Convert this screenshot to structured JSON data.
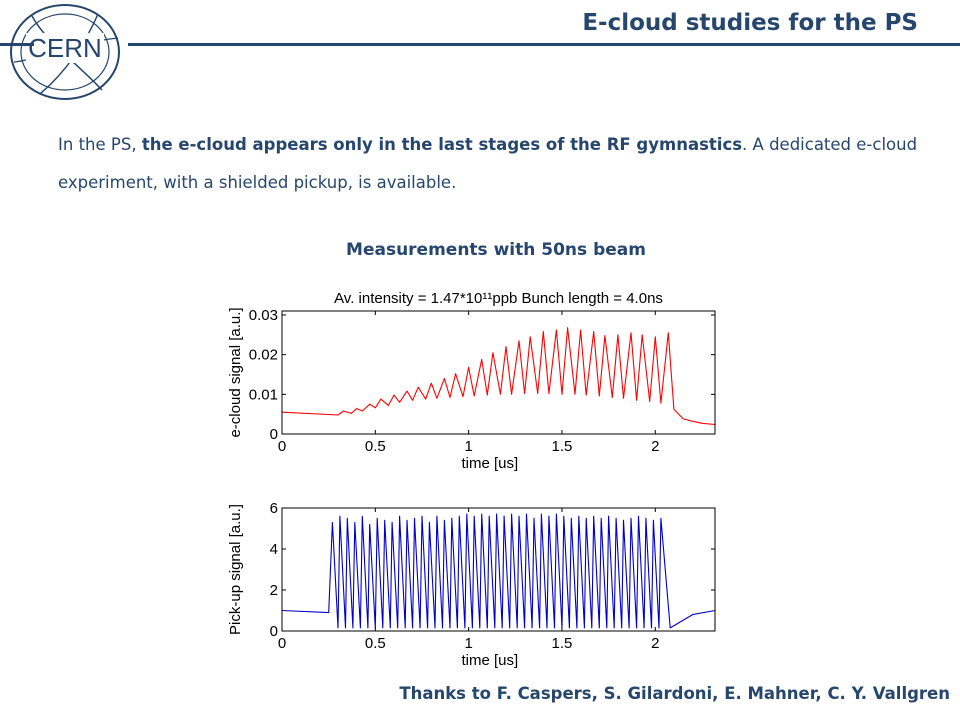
{
  "header": {
    "logo_text": "CERN",
    "title": "E-cloud studies for the PS"
  },
  "intro": {
    "part1": "In the PS, ",
    "bold1": "the e-cloud appears only  in the last stages of the RF gymnastics",
    "part2": ". A dedicated e-cloud experiment, with a shielded pickup, is available."
  },
  "subheading": "Measurements with 50ns beam",
  "footer": "Thanks to F. Caspers, S. Gilardoni, E. Mahner, C. Y. Vallgren",
  "colors": {
    "accent": "#26466d",
    "ecloud_trace": "#ff0000",
    "pickup_trace": "#0000cc"
  },
  "chart_data": [
    {
      "type": "line",
      "title": "Av. intensity = 1.47*10¹¹ppb Bunch length = 4.0ns",
      "xlabel": "time [us]",
      "ylabel": "e-cloud signal [a.u.]",
      "xlim": [
        0,
        2.32
      ],
      "ylim": [
        0,
        0.031
      ],
      "xticks": [
        0,
        0.5,
        1,
        1.5,
        2
      ],
      "xtick_labels": [
        "0",
        "0.5",
        "1",
        "1.5",
        "2"
      ],
      "yticks": [
        0,
        0.01,
        0.02,
        0.03
      ],
      "ytick_labels": [
        "0",
        "0.01",
        "0.02",
        "0.03"
      ],
      "grid": false,
      "series": [
        {
          "x": [
            0,
            0.3,
            0.33,
            0.37,
            0.4,
            0.43,
            0.47,
            0.5,
            0.53,
            0.57,
            0.6,
            0.63,
            0.67,
            0.7,
            0.73,
            0.77,
            0.8,
            0.83,
            0.87,
            0.9,
            0.93,
            0.97,
            1.0,
            1.03,
            1.07,
            1.1,
            1.13,
            1.17,
            1.2,
            1.23,
            1.27,
            1.3,
            1.33,
            1.37,
            1.4,
            1.43,
            1.47,
            1.5,
            1.53,
            1.57,
            1.6,
            1.63,
            1.67,
            1.7,
            1.73,
            1.77,
            1.8,
            1.83,
            1.87,
            1.9,
            1.93,
            1.97,
            2.0,
            2.03,
            2.07,
            2.1,
            2.15,
            2.2,
            2.25,
            2.32
          ],
          "y": [
            0.0055,
            0.0048,
            0.0058,
            0.0052,
            0.0064,
            0.0058,
            0.0075,
            0.0066,
            0.0088,
            0.0072,
            0.0098,
            0.008,
            0.0108,
            0.0085,
            0.0118,
            0.0088,
            0.0128,
            0.009,
            0.014,
            0.0092,
            0.0152,
            0.0094,
            0.0168,
            0.0096,
            0.0188,
            0.0098,
            0.0205,
            0.01,
            0.022,
            0.01,
            0.0235,
            0.0102,
            0.0245,
            0.0102,
            0.0258,
            0.0102,
            0.0262,
            0.01,
            0.0268,
            0.01,
            0.0262,
            0.0098,
            0.0258,
            0.0096,
            0.0248,
            0.0092,
            0.025,
            0.009,
            0.0255,
            0.0085,
            0.025,
            0.0082,
            0.0245,
            0.0078,
            0.0255,
            0.0062,
            0.0038,
            0.0032,
            0.0027,
            0.0024
          ]
        }
      ]
    },
    {
      "type": "line",
      "title": "",
      "xlabel": "time [us]",
      "ylabel": "Pick-up signal [a.u.]",
      "xlim": [
        0,
        2.32
      ],
      "ylim": [
        0,
        6
      ],
      "xticks": [
        0,
        0.5,
        1,
        1.5,
        2
      ],
      "xtick_labels": [
        "0",
        "0.5",
        "1",
        "1.5",
        "2"
      ],
      "yticks": [
        0,
        2,
        4,
        6
      ],
      "ytick_labels": [
        "0",
        "2",
        "4",
        "6"
      ],
      "grid": false,
      "series": [
        {
          "x": [
            0,
            0.25,
            0.27,
            0.3,
            0.31,
            0.34,
            0.35,
            0.38,
            0.39,
            0.42,
            0.43,
            0.46,
            0.47,
            0.5,
            0.51,
            0.54,
            0.55,
            0.58,
            0.59,
            0.62,
            0.63,
            0.66,
            0.67,
            0.7,
            0.71,
            0.74,
            0.75,
            0.78,
            0.79,
            0.82,
            0.83,
            0.86,
            0.87,
            0.9,
            0.91,
            0.94,
            0.95,
            0.98,
            0.99,
            1.02,
            1.03,
            1.06,
            1.07,
            1.1,
            1.11,
            1.14,
            1.15,
            1.18,
            1.19,
            1.22,
            1.23,
            1.26,
            1.27,
            1.3,
            1.31,
            1.34,
            1.35,
            1.38,
            1.39,
            1.42,
            1.43,
            1.46,
            1.47,
            1.5,
            1.51,
            1.54,
            1.55,
            1.58,
            1.59,
            1.62,
            1.63,
            1.66,
            1.67,
            1.7,
            1.71,
            1.74,
            1.75,
            1.78,
            1.79,
            1.82,
            1.83,
            1.86,
            1.87,
            1.9,
            1.91,
            1.94,
            1.95,
            1.98,
            1.99,
            2.02,
            2.03,
            2.08,
            2.2,
            2.32
          ],
          "y": [
            1.0,
            0.9,
            5.3,
            0.15,
            5.6,
            0.15,
            5.5,
            0.15,
            5.3,
            0.15,
            5.6,
            0.15,
            5.2,
            0.15,
            5.5,
            0.15,
            5.4,
            0.15,
            5.3,
            0.15,
            5.6,
            0.15,
            5.4,
            0.15,
            5.5,
            0.15,
            5.6,
            0.15,
            5.3,
            0.15,
            5.6,
            0.15,
            5.4,
            0.15,
            5.5,
            0.15,
            5.6,
            0.15,
            5.7,
            0.15,
            5.6,
            0.15,
            5.7,
            0.15,
            5.6,
            0.15,
            5.7,
            0.15,
            5.6,
            0.15,
            5.7,
            0.15,
            5.6,
            0.15,
            5.7,
            0.15,
            5.5,
            0.15,
            5.7,
            0.15,
            5.6,
            0.15,
            5.7,
            0.15,
            5.6,
            0.15,
            5.5,
            0.15,
            5.6,
            0.15,
            5.5,
            0.15,
            5.6,
            0.15,
            5.5,
            0.15,
            5.6,
            0.15,
            5.5,
            0.15,
            5.4,
            0.15,
            5.5,
            0.15,
            5.6,
            0.15,
            5.5,
            0.15,
            5.4,
            0.15,
            5.5,
            0.15,
            0.8,
            1.0
          ]
        }
      ]
    }
  ]
}
